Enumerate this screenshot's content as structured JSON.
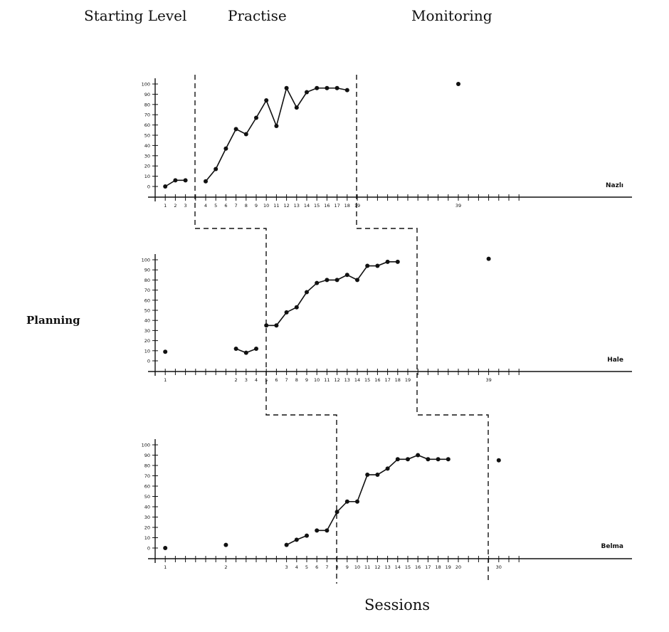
{
  "header": {
    "starting_level": "Starting Level",
    "practise": "Practise",
    "monitoring": "Monitoring"
  },
  "side_label": "Planning",
  "footer_label": "Sessions",
  "chart_data": [
    {
      "type": "line",
      "participant": "Nazlı",
      "y_ticks": [
        0,
        10,
        20,
        30,
        40,
        50,
        60,
        70,
        80,
        90,
        100
      ],
      "ylim": [
        0,
        100
      ],
      "grid": false,
      "x_tick_labels": [
        "1",
        "2",
        "3",
        "4",
        "5",
        "6",
        "7",
        "8",
        "9",
        "10",
        "11",
        "12",
        "13",
        "14",
        "15",
        "16",
        "17",
        "18",
        "19",
        "39"
      ],
      "phases": [
        {
          "phase": "Starting Level",
          "sessions": [
            1,
            2,
            3
          ],
          "values": [
            0,
            6,
            6
          ]
        },
        {
          "phase": "Practise",
          "sessions": [
            4,
            5,
            6,
            7,
            8,
            9,
            10,
            11,
            12,
            13,
            14,
            15,
            16,
            17,
            18
          ],
          "values": [
            5,
            17,
            37,
            56,
            51,
            67,
            84,
            59,
            96,
            77,
            92,
            96,
            96,
            96,
            94
          ]
        },
        {
          "phase": "Monitoring",
          "sessions": [
            39
          ],
          "values": [
            100
          ]
        }
      ]
    },
    {
      "type": "line",
      "participant": "Hale",
      "y_ticks": [
        0,
        10,
        20,
        30,
        40,
        50,
        60,
        70,
        80,
        90,
        100
      ],
      "ylim": [
        0,
        100
      ],
      "grid": false,
      "x_tick_labels": [
        "1",
        "2",
        "3",
        "4",
        "5",
        "6",
        "7",
        "8",
        "9",
        "10",
        "11",
        "12",
        "13",
        "14",
        "15",
        "16",
        "17",
        "18",
        "19",
        "39"
      ],
      "phases": [
        {
          "phase": "Starting Level",
          "sessions": [
            1,
            2,
            3,
            4
          ],
          "values": [
            9,
            12,
            8,
            12
          ]
        },
        {
          "phase": "Practise",
          "sessions": [
            5,
            6,
            7,
            8,
            9,
            10,
            11,
            12,
            13,
            14,
            15,
            16,
            17,
            18
          ],
          "values": [
            35,
            35,
            48,
            53,
            68,
            77,
            80,
            80,
            85,
            80,
            94,
            94,
            98,
            98
          ]
        },
        {
          "phase": "Monitoring",
          "sessions": [
            39
          ],
          "values": [
            101
          ]
        }
      ]
    },
    {
      "type": "line",
      "participant": "Belma",
      "y_ticks": [
        0,
        10,
        20,
        30,
        40,
        50,
        60,
        70,
        80,
        90,
        100
      ],
      "ylim": [
        0,
        100
      ],
      "grid": false,
      "x_tick_labels": [
        "1",
        "2",
        "3",
        "4",
        "5",
        "6",
        "7",
        "8",
        "9",
        "10",
        "11",
        "12",
        "13",
        "14",
        "15",
        "16",
        "17",
        "18",
        "19",
        "20",
        "30"
      ],
      "phases": [
        {
          "phase": "Starting Level",
          "sessions": [
            1,
            2,
            3,
            4,
            5
          ],
          "values": [
            0,
            3,
            3,
            8,
            12
          ]
        },
        {
          "phase": "Practise",
          "sessions": [
            6,
            7,
            8,
            9,
            10,
            11,
            12,
            13,
            14,
            15,
            16,
            17,
            18,
            19
          ],
          "values": [
            17,
            17,
            35,
            45,
            45,
            71,
            71,
            77,
            86,
            86,
            90,
            86,
            86,
            86
          ]
        },
        {
          "phase": "Monitoring",
          "sessions": [
            30
          ],
          "values": [
            85
          ]
        }
      ]
    }
  ]
}
